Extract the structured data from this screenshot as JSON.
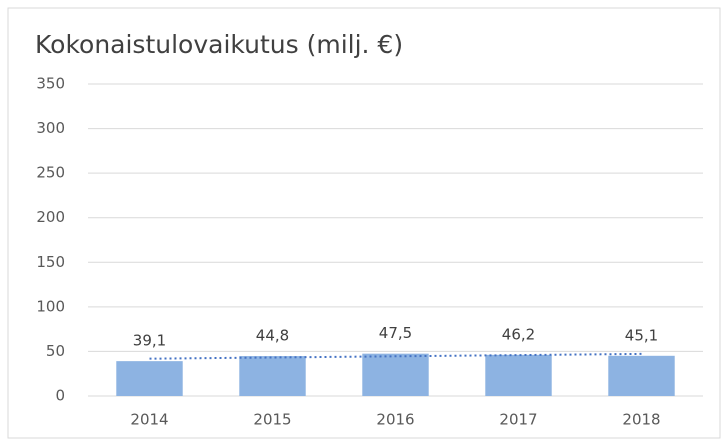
{
  "chart_data": {
    "type": "bar",
    "title": "Kokonaistulovaikutus (milj. €)",
    "categories": [
      "2014",
      "2015",
      "2016",
      "2017",
      "2018"
    ],
    "values": [
      39.1,
      44.8,
      47.5,
      46.2,
      45.1
    ],
    "value_labels": [
      "39,1",
      "44,8",
      "47,5",
      "46,2",
      "45,1"
    ],
    "color": "#8db3e2",
    "ylim": [
      0,
      350
    ],
    "yticks": [
      0,
      50,
      100,
      150,
      200,
      250,
      300,
      350
    ],
    "grid": true,
    "trendline": {
      "type": "linear",
      "color": "#4472c4"
    }
  }
}
